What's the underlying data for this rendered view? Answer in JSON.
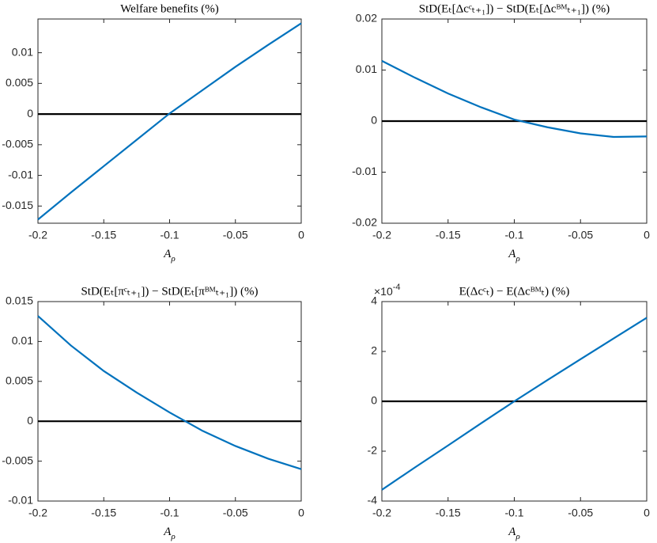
{
  "chart_data": [
    {
      "type": "line",
      "title": "Welfare benefits (%)",
      "xlabel": "A",
      "xlabel_sub": "ρ",
      "x": [
        -0.2,
        -0.175,
        -0.15,
        -0.125,
        -0.1,
        -0.075,
        -0.05,
        -0.025,
        0
      ],
      "series": [
        {
          "color": "#0072bd",
          "values": [
            -0.0172,
            -0.0128,
            -0.0085,
            -0.0042,
            0.0001,
            0.0039,
            0.0077,
            0.0113,
            0.0148
          ]
        }
      ],
      "xlim": [
        -0.2,
        0
      ],
      "xticks": [
        -0.2,
        -0.15,
        -0.1,
        -0.05,
        0
      ],
      "ylim": [
        -0.0178,
        0.0155
      ],
      "yticks": [
        -0.015,
        -0.01,
        -0.005,
        0,
        0.005,
        0.01
      ],
      "reference_line": 0
    },
    {
      "type": "line",
      "title": "StD(Eₜ[Δcᶜₜ₊₁]) − StD(Eₜ[Δcᴮᴹₜ₊₁]) (%)",
      "xlabel": "A",
      "xlabel_sub": "ρ",
      "x": [
        -0.2,
        -0.175,
        -0.15,
        -0.125,
        -0.1,
        -0.075,
        -0.05,
        -0.025,
        0
      ],
      "series": [
        {
          "color": "#0072bd",
          "values": [
            0.0118,
            0.0085,
            0.0054,
            0.0027,
            0.0003,
            -0.0012,
            -0.0024,
            -0.0031,
            -0.003
          ]
        }
      ],
      "xlim": [
        -0.2,
        0
      ],
      "xticks": [
        -0.2,
        -0.15,
        -0.1,
        -0.05,
        0
      ],
      "ylim": [
        -0.02,
        0.02
      ],
      "yticks": [
        -0.02,
        -0.01,
        0,
        0.01,
        0.02
      ],
      "reference_line": 0
    },
    {
      "type": "line",
      "title": "StD(Eₜ[πᶜₜ₊₁]) − StD(Eₜ[πᴮᴹₜ₊₁]) (%)",
      "xlabel": "A",
      "xlabel_sub": "ρ",
      "x": [
        -0.2,
        -0.175,
        -0.15,
        -0.125,
        -0.1,
        -0.075,
        -0.05,
        -0.025,
        0
      ],
      "series": [
        {
          "color": "#0072bd",
          "values": [
            0.0132,
            0.0095,
            0.0063,
            0.0036,
            0.0011,
            -0.0012,
            -0.0031,
            -0.0047,
            -0.006
          ]
        }
      ],
      "xlim": [
        -0.2,
        0
      ],
      "xticks": [
        -0.2,
        -0.15,
        -0.1,
        -0.05,
        0
      ],
      "ylim": [
        -0.01,
        0.015
      ],
      "yticks": [
        -0.01,
        -0.005,
        0,
        0.005,
        0.01,
        0.015
      ],
      "reference_line": 0
    },
    {
      "type": "line",
      "title": "E(Δcᶜₜ) − E(Δcᴮᴹₜ) (%)",
      "xlabel": "A",
      "xlabel_sub": "ρ",
      "axis_multiplier": "×10",
      "axis_exponent": "-4",
      "x": [
        -0.2,
        -0.175,
        -0.15,
        -0.125,
        -0.1,
        -0.075,
        -0.05,
        -0.025,
        0
      ],
      "series": [
        {
          "color": "#0072bd",
          "values": [
            -3.55,
            -2.65,
            -1.77,
            -0.88,
            0,
            0.85,
            1.69,
            2.52,
            3.35
          ]
        }
      ],
      "xlim": [
        -0.2,
        0
      ],
      "xticks": [
        -0.2,
        -0.15,
        -0.1,
        -0.05,
        0
      ],
      "ylim": [
        -4,
        4
      ],
      "yticks": [
        -4,
        -2,
        0,
        2,
        4
      ],
      "reference_line": 0
    }
  ]
}
